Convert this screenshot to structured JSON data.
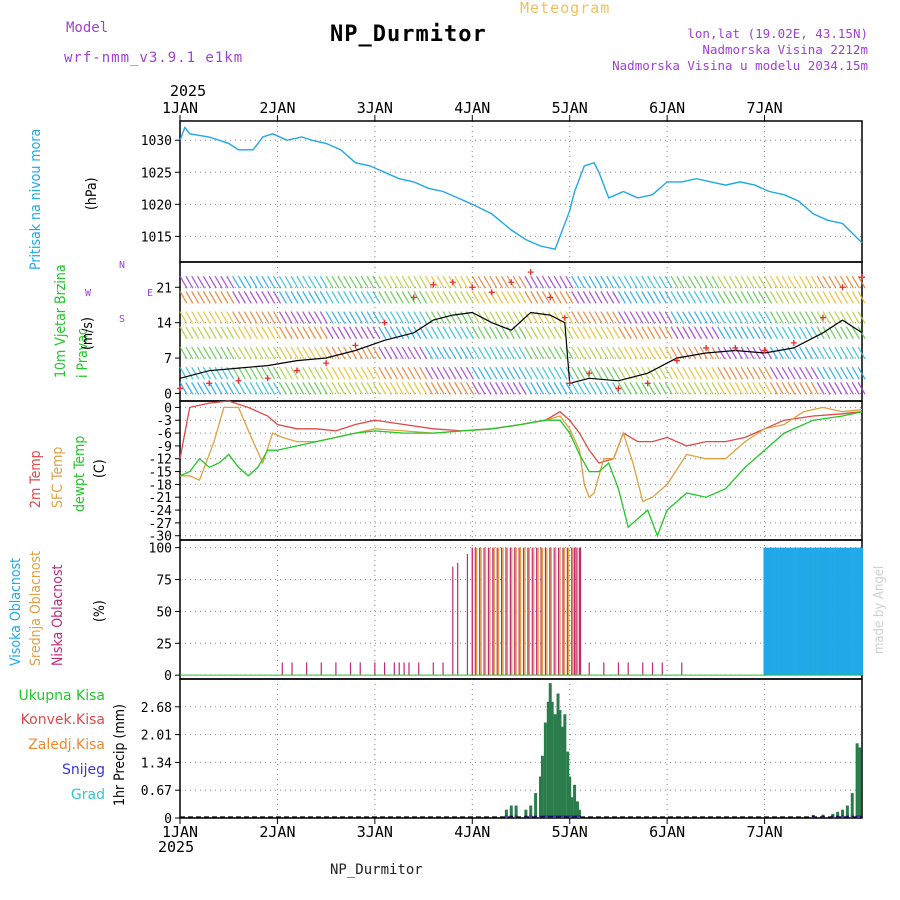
{
  "header": {
    "title": "NP_Durmitor",
    "meteogram": "Meteogram",
    "model_label": "Model",
    "model_name": "wrf-nmm_v3.9.1 e1km",
    "lonlat": "lon,lat (19.02E, 43.15N)",
    "elevation": "Nadmorska Visina 2212m",
    "model_elevation": "Nadmorska Visina u modelu 2034.15m",
    "footer": "NP_Durmitor",
    "year_top": "2025",
    "year_bottom": "2025",
    "watermark": "made by Angel"
  },
  "chart_data": [
    {
      "type": "line",
      "panel": "pressure",
      "ylabel": "Pritisak na nivou mora",
      "yunit": "(hPa)",
      "categories": [
        "1JAN",
        "2JAN",
        "3JAN",
        "4JAN",
        "5JAN",
        "6JAN",
        "7JAN"
      ],
      "yticks": [
        1015,
        1020,
        1025,
        1030
      ],
      "ylim": [
        1011,
        1033
      ],
      "series": [
        {
          "color": "#20a8e8",
          "x": [
            0,
            0.05,
            0.1,
            0.3,
            0.5,
            0.6,
            0.75,
            0.85,
            0.95,
            1.1,
            1.25,
            1.35,
            1.5,
            1.65,
            1.8,
            1.95,
            2.1,
            2.25,
            2.4,
            2.55,
            2.7,
            2.85,
            3.0,
            3.2,
            3.4,
            3.55,
            3.7,
            3.85,
            4.0,
            4.05,
            4.15,
            4.25,
            4.3,
            4.4,
            4.55,
            4.7,
            4.85,
            5.0,
            5.15,
            5.3,
            5.45,
            5.6,
            5.75,
            5.9,
            6.05,
            6.2,
            6.35,
            6.5,
            6.65,
            6.8,
            6.9,
            7.0
          ],
          "y": [
            1030,
            1032,
            1031,
            1030.5,
            1029.5,
            1028.5,
            1028.5,
            1030.5,
            1031,
            1030,
            1030.5,
            1030,
            1029.5,
            1028.5,
            1026.5,
            1026,
            1025,
            1024,
            1023.5,
            1022.5,
            1022,
            1021,
            1020,
            1018.5,
            1016,
            1014.5,
            1013.5,
            1013,
            1019,
            1022,
            1026,
            1026.5,
            1025,
            1021,
            1022,
            1021,
            1021.5,
            1023.5,
            1023.5,
            1024,
            1023.5,
            1023,
            1023.5,
            1023,
            1022,
            1021.5,
            1020.5,
            1018.5,
            1017.5,
            1017,
            1015.5,
            1014
          ]
        }
      ]
    },
    {
      "type": "line",
      "panel": "wind",
      "ylabel": "10m Vjetar Brzina i Pravac",
      "yunit": "(m/s)",
      "direction_key": [
        "N",
        "E",
        "S",
        "W"
      ],
      "yticks": [
        0,
        7,
        14,
        21
      ],
      "ylim": [
        -1.5,
        26
      ],
      "series": [
        {
          "name": "speed",
          "color": "#000000",
          "x": [
            0,
            0.3,
            0.6,
            0.9,
            1.2,
            1.5,
            1.8,
            2.1,
            2.4,
            2.6,
            2.8,
            3.0,
            3.2,
            3.4,
            3.6,
            3.8,
            3.95,
            4.0,
            4.2,
            4.5,
            4.8,
            5.1,
            5.4,
            5.7,
            6.0,
            6.3,
            6.6,
            6.8,
            7.0
          ],
          "y": [
            3,
            4.5,
            5,
            5.5,
            6.5,
            7,
            8.5,
            10.5,
            12,
            14.5,
            15.5,
            16,
            14,
            12.5,
            16,
            15.5,
            14,
            2,
            3,
            2.5,
            4,
            7,
            8,
            8.5,
            8,
            9,
            12,
            14.5,
            12
          ]
        },
        {
          "name": "gust",
          "color": "#e83030",
          "marker": "plus",
          "x": [
            0,
            0.3,
            0.6,
            0.9,
            1.2,
            1.5,
            1.8,
            2.1,
            2.4,
            2.6,
            2.8,
            3.0,
            3.2,
            3.4,
            3.6,
            3.8,
            3.95,
            4.0,
            4.2,
            4.5,
            4.8,
            5.1,
            5.4,
            5.7,
            6.0,
            6.3,
            6.6,
            6.8,
            7.0
          ],
          "y": [
            1,
            2,
            2.5,
            3,
            4.5,
            6,
            9.5,
            14,
            19,
            21.5,
            22,
            21,
            20,
            22,
            24,
            19,
            15,
            2,
            4,
            1,
            2,
            6.5,
            9,
            9,
            8.5,
            10,
            15,
            21,
            23
          ]
        }
      ]
    },
    {
      "type": "line",
      "panel": "temperature",
      "ylabel": "(C)",
      "yticks": [
        0,
        -3,
        -6,
        -9,
        -12,
        -15,
        -18,
        -21,
        -24,
        -27,
        -30
      ],
      "ylim": [
        -31,
        1.5
      ],
      "series": [
        {
          "name": "2m Temp",
          "color": "#e04848",
          "x": [
            0,
            0.1,
            0.3,
            0.5,
            0.7,
            0.8,
            0.9,
            1.0,
            1.2,
            1.4,
            1.6,
            1.8,
            2.0,
            2.3,
            2.6,
            2.9,
            3.2,
            3.5,
            3.75,
            3.9,
            4.0,
            4.1,
            4.2,
            4.3,
            4.45,
            4.55,
            4.7,
            4.85,
            5.0,
            5.2,
            5.4,
            5.6,
            5.8,
            6.0,
            6.2,
            6.5,
            6.8,
            7.0
          ],
          "y": [
            -12,
            0,
            1,
            1.5,
            0,
            -1,
            -2,
            -4,
            -5,
            -5,
            -5.5,
            -4,
            -3,
            -4,
            -5,
            -5.5,
            -5,
            -4,
            -3,
            -1,
            -3,
            -6,
            -10,
            -13,
            -12,
            -6,
            -8,
            -8,
            -7,
            -9,
            -8,
            -8,
            -7,
            -5,
            -3,
            -2,
            -1.5,
            -1
          ]
        },
        {
          "name": "SFC Temp",
          "color": "#e0a040",
          "x": [
            0,
            0.1,
            0.2,
            0.35,
            0.45,
            0.6,
            0.75,
            0.85,
            0.95,
            1.05,
            1.2,
            1.4,
            1.6,
            1.8,
            2.0,
            2.3,
            2.6,
            2.9,
            3.2,
            3.5,
            3.75,
            3.9,
            4.0,
            4.1,
            4.15,
            4.2,
            4.25,
            4.35,
            4.45,
            4.55,
            4.65,
            4.75,
            4.85,
            5.0,
            5.2,
            5.4,
            5.6,
            5.8,
            6.0,
            6.2,
            6.4,
            6.6,
            6.8,
            7.0
          ],
          "y": [
            -16,
            -16,
            -17,
            -8,
            0,
            0,
            -8,
            -13,
            -6,
            -7,
            -8,
            -8,
            -7,
            -6,
            -5,
            -5.5,
            -6,
            -5.5,
            -5,
            -4,
            -3,
            -2,
            -5,
            -10,
            -18,
            -21,
            -20,
            -12,
            -12,
            -6,
            -13,
            -22,
            -21,
            -18,
            -11,
            -12,
            -12,
            -8,
            -5,
            -4,
            -1,
            0,
            -1,
            -0.5
          ]
        },
        {
          "name": "dewpt Temp",
          "color": "#20c828",
          "x": [
            0,
            0.1,
            0.2,
            0.3,
            0.4,
            0.5,
            0.6,
            0.7,
            0.8,
            0.9,
            1.0,
            1.2,
            1.4,
            1.6,
            1.8,
            2.0,
            2.3,
            2.6,
            2.9,
            3.2,
            3.5,
            3.75,
            3.9,
            4.0,
            4.1,
            4.2,
            4.3,
            4.4,
            4.5,
            4.6,
            4.7,
            4.8,
            4.9,
            5.0,
            5.2,
            5.4,
            5.6,
            5.8,
            6.0,
            6.2,
            6.5,
            6.8,
            7.0
          ],
          "y": [
            -16,
            -15,
            -12,
            -14,
            -13,
            -11,
            -14,
            -16,
            -14,
            -10,
            -10,
            -9,
            -8,
            -7,
            -6,
            -5.5,
            -6,
            -6,
            -5.5,
            -5,
            -4,
            -3,
            -3,
            -6,
            -11,
            -15,
            -15,
            -13,
            -19,
            -28,
            -26,
            -24,
            -30,
            -24,
            -20,
            -21,
            -19,
            -14,
            -10,
            -6,
            -3,
            -2,
            -1
          ]
        }
      ]
    },
    {
      "type": "bar",
      "panel": "cloud",
      "yunit": "(%)",
      "yticks": [
        0,
        25,
        50,
        75,
        100
      ],
      "ylim": [
        -3,
        106
      ],
      "low_bars": {
        "color": "#c02878",
        "x": [
          1.05,
          1.15,
          1.3,
          1.45,
          1.6,
          1.75,
          1.85,
          2.0,
          2.1,
          2.2,
          2.25,
          2.3,
          2.35,
          2.45,
          2.6,
          2.7,
          2.8,
          2.85,
          2.95,
          3.0,
          4.05,
          4.1,
          4.2,
          4.35,
          4.5,
          4.6,
          4.75,
          4.85,
          4.95,
          5.15
        ],
        "y": [
          10,
          10,
          10,
          10,
          10,
          10,
          10,
          10,
          10,
          10,
          10,
          10,
          10,
          10,
          10,
          10,
          85,
          88,
          95,
          100,
          100,
          100,
          10,
          10,
          10,
          10,
          10,
          10,
          10,
          10
        ]
      },
      "mid_band": {
        "color": "#e0a040",
        "start": 3.0,
        "end": 4.1,
        "step": 0.045,
        "value": 100
      },
      "high_band": {
        "color": "#20a8e8",
        "start": 6.0,
        "end": 7.0,
        "step": 0.02,
        "value": 100
      }
    },
    {
      "type": "bar",
      "panel": "precip",
      "ylabel": "1hr Precip (mm)",
      "legend": [
        "Ukupna Kisa",
        "Konvek.Kisa",
        "Zaledj.Kisa",
        "Snijeg",
        "Grad"
      ],
      "legend_colors": [
        "#20c828",
        "#e04848",
        "#f08830",
        "#3838d0",
        "#30c8c8"
      ],
      "categories": [
        "1JAN",
        "2JAN",
        "3JAN",
        "4JAN",
        "5JAN",
        "6JAN",
        "7JAN"
      ],
      "yticks": [
        0,
        0.67,
        1.34,
        2.01,
        2.68
      ],
      "ylim": [
        0,
        3.35
      ],
      "x": [
        3.35,
        3.4,
        3.45,
        3.55,
        3.6,
        3.65,
        3.7,
        3.72,
        3.75,
        3.78,
        3.8,
        3.82,
        3.85,
        3.88,
        3.9,
        3.93,
        3.95,
        3.98,
        4.0,
        4.02,
        4.05,
        4.08,
        4.1,
        6.5,
        6.6,
        6.7,
        6.75,
        6.8,
        6.85,
        6.9,
        6.95,
        6.98
      ],
      "y": [
        0.2,
        0.3,
        0.3,
        0.2,
        0.3,
        0.6,
        1.0,
        1.5,
        2.3,
        2.8,
        3.25,
        2.8,
        2.5,
        3.0,
        2.6,
        2.2,
        2.5,
        1.6,
        1.0,
        0.5,
        0.8,
        0.4,
        0.2,
        0.05,
        0.08,
        0.1,
        0.15,
        0.2,
        0.3,
        0.6,
        1.8,
        1.7
      ]
    }
  ]
}
